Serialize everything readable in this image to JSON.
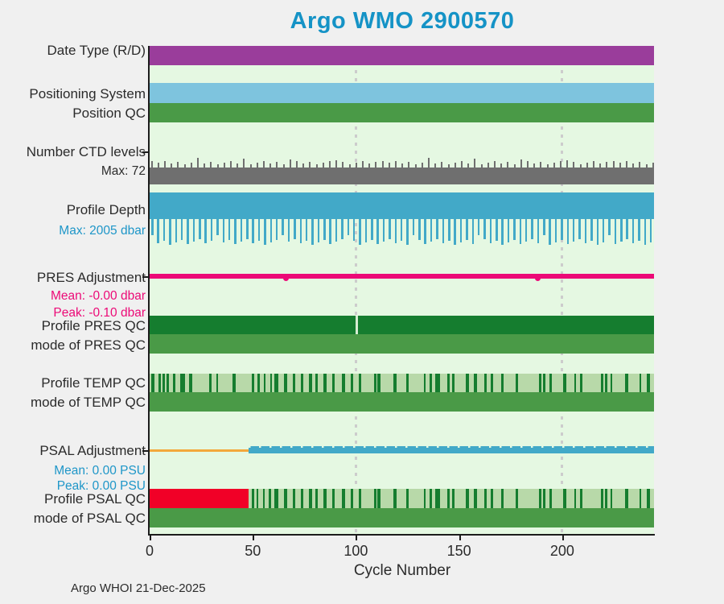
{
  "title": "Argo WMO 2900570",
  "footer": "Argo WHOI 21-Dec-2025",
  "colors": {
    "background": "#f0f0f0",
    "plot_background": "#e5f8e2",
    "axis": "#1c1c1c",
    "title_text": "#1593c6",
    "label_text": "#2b2b2b",
    "blue_subtext": "#1e96c8",
    "magenta_subtext": "#ec0a77",
    "purple": "#9a3d9b",
    "sky_blue": "#7ec4de",
    "green": "#4a9a47",
    "gray": "#6f6f6f",
    "depth_blue": "#42a9c8",
    "magenta": "#ec0a77",
    "dark_green": "#157d2f",
    "pale_green": "#b8d9a9",
    "stripe_gap_green": "#d6ecd1",
    "red": "#f10027",
    "orange": "#f3a83b",
    "gridline": "#cccccc"
  },
  "chart_data": {
    "type": "status-timeline",
    "title": "Argo WMO 2900570",
    "xlabel": "Cycle Number",
    "x_range": [
      0,
      244
    ],
    "x_ticks": [
      0,
      50,
      100,
      150,
      200
    ],
    "gridline_cycles": [
      100,
      200
    ],
    "rows": [
      {
        "id": "date_type",
        "label": "Date Type (R/D)",
        "sublabels": [],
        "render": {
          "kind": "solid",
          "color": "#9a3d9b"
        }
      },
      {
        "id": "positioning_system",
        "label": "Positioning System",
        "sublabels": [],
        "render": {
          "kind": "solid",
          "color": "#7ec4de"
        }
      },
      {
        "id": "position_qc",
        "label": "Position QC",
        "sublabels": [],
        "render": {
          "kind": "solid",
          "color": "#4a9a47"
        }
      },
      {
        "id": "number_ctd_levels",
        "label": "Number CTD levels",
        "sublabels": [
          {
            "text": "Max: 72",
            "color": "#2b2b2b"
          }
        ],
        "render": {
          "kind": "ticks_up",
          "color": "#6f6f6f",
          "max": 72
        }
      },
      {
        "id": "profile_depth",
        "label": "Profile Depth",
        "sublabels": [
          {
            "text": "Max: 2005 dbar",
            "color": "#1e96c8"
          }
        ],
        "render": {
          "kind": "lines_down",
          "color": "#42a9c8",
          "max_dbar": 2005
        }
      },
      {
        "id": "pres_adjustment",
        "label": "PRES Adjustment",
        "sublabels": [
          {
            "text": "Mean: -0.00 dbar",
            "color": "#ec0a77"
          },
          {
            "text": "Peak: -0.10 dbar",
            "color": "#ec0a77"
          }
        ],
        "render": {
          "kind": "adj_line",
          "color": "#ec0a77",
          "dip_cycles": [
            66,
            188
          ]
        }
      },
      {
        "id": "profile_pres_qc",
        "label": "Profile PRES QC",
        "sublabels": [],
        "render": {
          "kind": "solid_notched",
          "color": "#157d2f",
          "notch_color": "#d6ecd1",
          "notch_cycles": [
            100
          ]
        }
      },
      {
        "id": "mode_pres_qc",
        "label": "mode of PRES QC",
        "sublabels": [],
        "render": {
          "kind": "solid",
          "color": "#4a9a47"
        }
      },
      {
        "id": "profile_temp_qc",
        "label": "Profile TEMP QC",
        "sublabels": [],
        "render": {
          "kind": "striped",
          "bg_color": "#b8d9a9",
          "stripe_color": "#157d2f",
          "flagged_cycles": [
            [
              0.8,
              1.5
            ],
            [
              4.3,
              1
            ],
            [
              6.3,
              1
            ],
            [
              8.3,
              1
            ],
            [
              11.3,
              1
            ],
            [
              15,
              2.3
            ],
            [
              19.3,
              1.4
            ],
            [
              29,
              1
            ],
            [
              32.3,
              1
            ],
            [
              40.3,
              1.4
            ],
            [
              49.5,
              1
            ],
            [
              52.3,
              1
            ],
            [
              55.3,
              1
            ],
            [
              58.3,
              1
            ],
            [
              60.3,
              2
            ],
            [
              65.3,
              1.4
            ],
            [
              69.3,
              1.4
            ],
            [
              73.5,
              1
            ],
            [
              77.3,
              1.4
            ],
            [
              80.5,
              1
            ],
            [
              84.3,
              1.4
            ],
            [
              88.5,
              1
            ],
            [
              93.3,
              1.4
            ],
            [
              97.5,
              1
            ],
            [
              101.3,
              1.4
            ],
            [
              108.8,
              1
            ],
            [
              110.3,
              1.8
            ],
            [
              118.3,
              1.4
            ],
            [
              124.3,
              1.4
            ],
            [
              132.8,
              1
            ],
            [
              135.8,
              1
            ],
            [
              138.3,
              2.6
            ],
            [
              144.3,
              1
            ],
            [
              146.8,
              1
            ],
            [
              153.3,
              1.4
            ],
            [
              157.3,
              1.4
            ],
            [
              162.3,
              1
            ],
            [
              165.3,
              1.4
            ],
            [
              170.3,
              1.4
            ],
            [
              177.3,
              1.4
            ],
            [
              188.8,
              1
            ],
            [
              190.8,
              1
            ],
            [
              193.8,
              1
            ],
            [
              200.3,
              1.6
            ],
            [
              205.8,
              1
            ],
            [
              208.8,
              1
            ],
            [
              218.8,
              1
            ],
            [
              220.8,
              1
            ],
            [
              223.3,
              1
            ],
            [
              230.3,
              1.6
            ],
            [
              237.3,
              1
            ],
            [
              240.8,
              1.6
            ]
          ]
        }
      },
      {
        "id": "mode_temp_qc",
        "label": "mode of TEMP QC",
        "sublabels": [],
        "render": {
          "kind": "solid",
          "color": "#4a9a47"
        }
      },
      {
        "id": "psal_adjustment",
        "label": "PSAL Adjustment",
        "sublabels": [
          {
            "text": "Mean: 0.00 PSU",
            "color": "#1e96c8"
          },
          {
            "text": "Peak: 0.00 PSU",
            "color": "#1e96c8"
          }
        ],
        "render": {
          "kind": "adj_segmented",
          "first_color": "#f3a83b",
          "second_color": "#42a9c8",
          "transition_cycle": 48
        }
      },
      {
        "id": "profile_psal_qc",
        "label": "Profile PSAL QC",
        "sublabels": [],
        "render": {
          "kind": "striped_prefix",
          "prefix_color": "#f10027",
          "prefix_end_cycle": 48,
          "bg_color": "#b8d9a9",
          "stripe_color": "#157d2f",
          "flagged_cycles": [
            [
              49.5,
              1
            ],
            [
              51.8,
              1
            ],
            [
              54.8,
              1
            ],
            [
              57.8,
              1
            ],
            [
              60.3,
              2
            ],
            [
              65.3,
              1.4
            ],
            [
              69.3,
              1.4
            ],
            [
              73.5,
              1
            ],
            [
              77.3,
              1.4
            ],
            [
              80.5,
              1
            ],
            [
              84.3,
              1.4
            ],
            [
              88.5,
              1
            ],
            [
              93.3,
              1.4
            ],
            [
              97.5,
              1
            ],
            [
              101.3,
              1.4
            ],
            [
              108.8,
              1
            ],
            [
              110.3,
              1.8
            ],
            [
              118.3,
              1.4
            ],
            [
              124.3,
              1.4
            ],
            [
              132.8,
              1
            ],
            [
              135.8,
              1
            ],
            [
              138.3,
              2.6
            ],
            [
              144.3,
              1
            ],
            [
              146.8,
              1
            ],
            [
              153.3,
              1.4
            ],
            [
              157.3,
              1.4
            ],
            [
              162.3,
              1
            ],
            [
              165.3,
              1.4
            ],
            [
              170.3,
              1.4
            ],
            [
              177.3,
              1.4
            ],
            [
              188.8,
              1
            ],
            [
              190.8,
              1
            ],
            [
              193.8,
              1
            ],
            [
              200.3,
              1.6
            ],
            [
              205.8,
              1
            ],
            [
              208.8,
              1
            ],
            [
              218.8,
              1
            ],
            [
              220.8,
              1
            ],
            [
              223.3,
              1
            ],
            [
              230.3,
              1.6
            ],
            [
              237.3,
              1
            ],
            [
              240.8,
              1.6
            ]
          ]
        }
      },
      {
        "id": "mode_psal_qc",
        "label": "mode of PSAL QC",
        "sublabels": [],
        "render": {
          "kind": "solid",
          "color": "#4a9a47"
        }
      }
    ]
  }
}
